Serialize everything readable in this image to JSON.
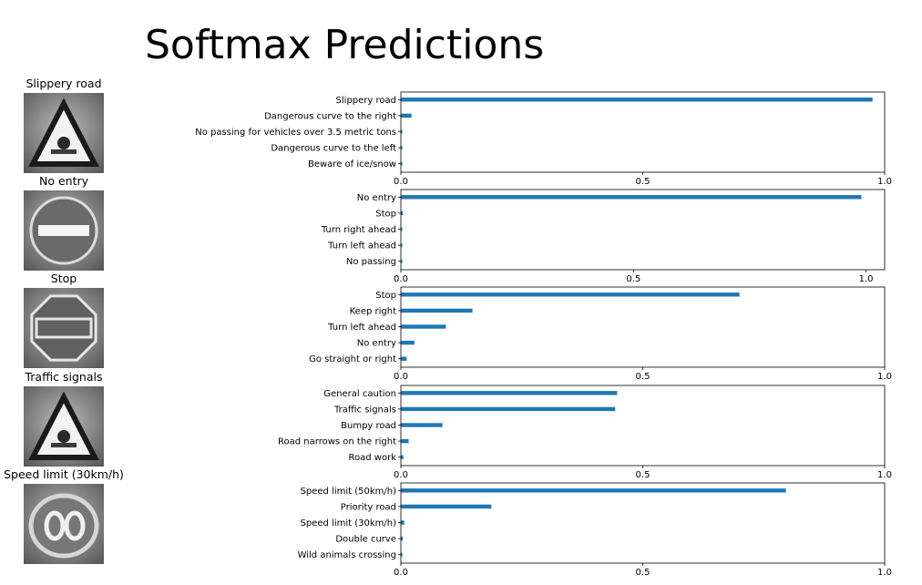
{
  "title": "Softmax Predictions",
  "colors": {
    "bar": "#1f77b4",
    "axes": "#000000",
    "sign_bg": "#8c8c8c"
  },
  "chart_data": [
    {
      "type": "bar",
      "orientation": "horizontal",
      "image_label": "Slippery road",
      "image_icon": "triangle-warning-sign-icon",
      "categories": [
        "Slippery road",
        "Dangerous curve to the right",
        "No passing for vehicles over 3.5 metric tons",
        "Dangerous curve to the left",
        "Beware of ice/snow"
      ],
      "values": [
        0.975,
        0.022,
        0.001,
        0.0005,
        0.0005
      ],
      "xlim": [
        0,
        1.0
      ],
      "xticks": [
        0.0,
        0.5,
        1.0
      ],
      "xtick_labels": [
        "0.0",
        "0.5",
        "1.0"
      ]
    },
    {
      "type": "bar",
      "orientation": "horizontal",
      "image_label": "No entry",
      "image_icon": "no-entry-sign-icon",
      "categories": [
        "No entry",
        "Stop",
        "Turn right ahead",
        "Turn left ahead",
        "No passing"
      ],
      "values": [
        0.99,
        0.004,
        0.001,
        0.0005,
        0.0005
      ],
      "xlim": [
        0,
        1.04
      ],
      "xticks": [
        0.0,
        0.5,
        1.0
      ],
      "xtick_labels": [
        "0.0",
        "0.5",
        "1.0"
      ]
    },
    {
      "type": "bar",
      "orientation": "horizontal",
      "image_label": "Stop",
      "image_icon": "stop-sign-icon",
      "categories": [
        "Stop",
        "Keep right",
        "Turn left ahead",
        "No entry",
        "Go straight or right"
      ],
      "values": [
        0.7,
        0.148,
        0.093,
        0.028,
        0.012
      ],
      "xlim": [
        0,
        1.0
      ],
      "xticks": [
        0.0,
        0.5,
        1.0
      ],
      "xtick_labels": [
        "0.0",
        "0.5",
        "1.0"
      ]
    },
    {
      "type": "bar",
      "orientation": "horizontal",
      "image_label": "Traffic signals",
      "image_icon": "traffic-signals-sign-icon",
      "categories": [
        "General caution",
        "Traffic signals",
        "Bumpy road",
        "Road narrows on the right",
        "Road work"
      ],
      "values": [
        0.447,
        0.443,
        0.086,
        0.016,
        0.005
      ],
      "xlim": [
        0,
        1.0
      ],
      "xticks": [
        0.0,
        0.5,
        1.0
      ],
      "xtick_labels": [
        "0.0",
        "0.5",
        "1.0"
      ]
    },
    {
      "type": "bar",
      "orientation": "horizontal",
      "image_label": "Speed limit (30km/h)",
      "image_icon": "speed-limit-sign-icon",
      "categories": [
        "Speed limit (50km/h)",
        "Priority road",
        "Speed limit (30km/h)",
        "Double curve",
        "Wild animals crossing"
      ],
      "values": [
        0.796,
        0.187,
        0.007,
        0.004,
        0.002
      ],
      "xlim": [
        0,
        1.0
      ],
      "xticks": [
        0.0,
        0.5,
        1.0
      ],
      "xtick_labels": [
        "0.0",
        "0.5",
        "1.0"
      ]
    }
  ]
}
